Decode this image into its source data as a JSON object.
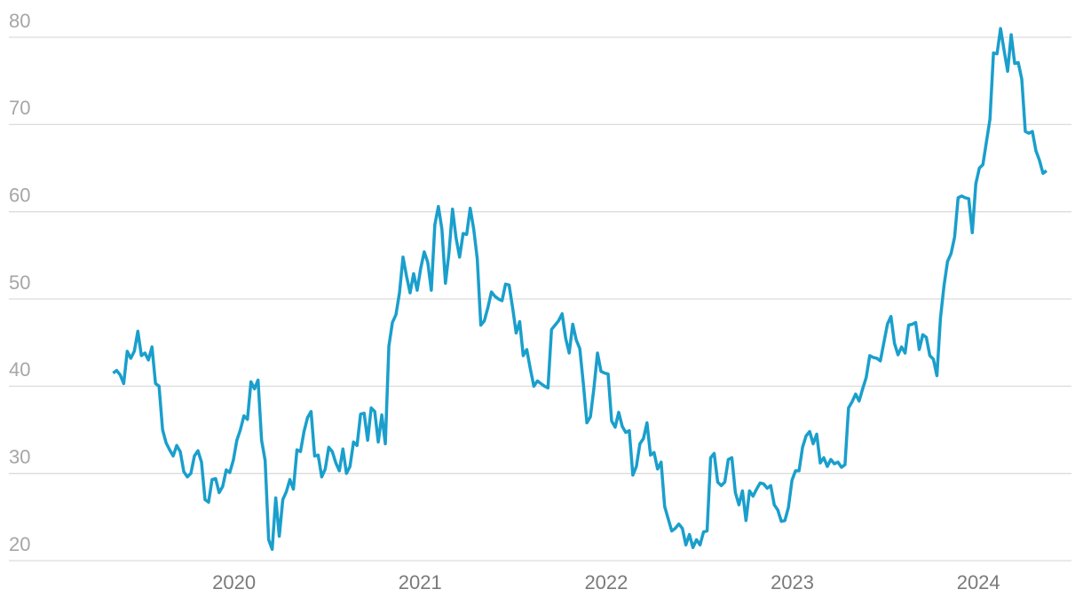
{
  "chart_data": {
    "type": "line",
    "color": "#1a9fcc",
    "grid": true,
    "xlim": [
      2018.79,
      2024.5
    ],
    "ylim": [
      20,
      83
    ],
    "xticks": [
      2020,
      2021,
      2022,
      2023,
      2024
    ],
    "yticks": [
      20,
      30,
      40,
      50,
      60,
      70,
      80
    ],
    "x": [
      2019.35,
      2019.369,
      2019.388,
      2019.407,
      2019.426,
      2019.445,
      2019.464,
      2019.483,
      2019.502,
      2019.521,
      2019.54,
      2019.559,
      2019.578,
      2019.597,
      2019.616,
      2019.635,
      2019.654,
      2019.673,
      2019.692,
      2019.711,
      2019.73,
      2019.749,
      2019.768,
      2019.787,
      2019.806,
      2019.825,
      2019.844,
      2019.863,
      2019.882,
      2019.901,
      2019.92,
      2019.939,
      2019.958,
      2019.977,
      2019.996,
      2020.015,
      2020.034,
      2020.053,
      2020.072,
      2020.091,
      2020.11,
      2020.129,
      2020.148,
      2020.167,
      2020.186,
      2020.205,
      2020.224,
      2020.243,
      2020.262,
      2020.281,
      2020.3,
      2020.319,
      2020.338,
      2020.357,
      2020.376,
      2020.395,
      2020.414,
      2020.433,
      2020.452,
      2020.471,
      2020.49,
      2020.509,
      2020.528,
      2020.547,
      2020.566,
      2020.585,
      2020.604,
      2020.623,
      2020.642,
      2020.661,
      2020.68,
      2020.699,
      2020.718,
      2020.737,
      2020.756,
      2020.775,
      2020.794,
      2020.813,
      2020.832,
      2020.851,
      2020.87,
      2020.889,
      2020.908,
      2020.927,
      2020.946,
      2020.965,
      2020.984,
      2021.003,
      2021.022,
      2021.041,
      2021.06,
      2021.079,
      2021.098,
      2021.117,
      2021.136,
      2021.155,
      2021.174,
      2021.193,
      2021.212,
      2021.231,
      2021.25,
      2021.269,
      2021.288,
      2021.307,
      2021.326,
      2021.345,
      2021.364,
      2021.383,
      2021.402,
      2021.421,
      2021.44,
      2021.459,
      2021.478,
      2021.497,
      2021.516,
      2021.535,
      2021.554,
      2021.573,
      2021.592,
      2021.611,
      2021.63,
      2021.649,
      2021.668,
      2021.687,
      2021.706,
      2021.725,
      2021.744,
      2021.763,
      2021.782,
      2021.801,
      2021.82,
      2021.839,
      2021.858,
      2021.877,
      2021.896,
      2021.915,
      2021.934,
      2021.953,
      2021.972,
      2021.991,
      2022.01,
      2022.029,
      2022.048,
      2022.067,
      2022.086,
      2022.105,
      2022.124,
      2022.143,
      2022.162,
      2022.181,
      2022.2,
      2022.219,
      2022.238,
      2022.257,
      2022.276,
      2022.295,
      2022.314,
      2022.333,
      2022.352,
      2022.371,
      2022.39,
      2022.409,
      2022.428,
      2022.447,
      2022.466,
      2022.485,
      2022.504,
      2022.523,
      2022.542,
      2022.561,
      2022.58,
      2022.599,
      2022.618,
      2022.637,
      2022.656,
      2022.675,
      2022.694,
      2022.713,
      2022.732,
      2022.751,
      2022.77,
      2022.789,
      2022.808,
      2022.827,
      2022.846,
      2022.865,
      2022.884,
      2022.903,
      2022.922,
      2022.941,
      2022.96,
      2022.979,
      2022.998,
      2023.017,
      2023.036,
      2023.055,
      2023.074,
      2023.093,
      2023.112,
      2023.131,
      2023.15,
      2023.169,
      2023.188,
      2023.207,
      2023.226,
      2023.245,
      2023.264,
      2023.283,
      2023.302,
      2023.321,
      2023.34,
      2023.359,
      2023.378,
      2023.397,
      2023.416,
      2023.435,
      2023.454,
      2023.473,
      2023.492,
      2023.511,
      2023.53,
      2023.549,
      2023.568,
      2023.587,
      2023.606,
      2023.625,
      2023.644,
      2023.663,
      2023.682,
      2023.701,
      2023.72,
      2023.739,
      2023.758,
      2023.777,
      2023.796,
      2023.815,
      2023.834,
      2023.853,
      2023.872,
      2023.891,
      2023.91,
      2023.929,
      2023.948,
      2023.967,
      2023.986,
      2024.005,
      2024.024,
      2024.043,
      2024.062,
      2024.081,
      2024.1,
      2024.119,
      2024.138,
      2024.157,
      2024.176,
      2024.195,
      2024.214,
      2024.233,
      2024.252,
      2024.271,
      2024.29,
      2024.309,
      2024.328,
      2024.347,
      2024.366
    ],
    "values": [
      41.5,
      41.8,
      41.3,
      40.3,
      44.0,
      43.2,
      44.0,
      46.3,
      43.5,
      43.8,
      43.0,
      44.5,
      40.3,
      40.0,
      35.0,
      33.5,
      32.7,
      32.0,
      33.2,
      32.5,
      30.2,
      29.6,
      30.0,
      32.0,
      32.6,
      31.3,
      27.0,
      26.7,
      29.3,
      29.4,
      27.8,
      28.5,
      30.4,
      30.1,
      31.5,
      33.8,
      35.0,
      36.6,
      36.2,
      40.5,
      39.7,
      40.7,
      33.8,
      31.5,
      22.4,
      21.3,
      27.2,
      22.8,
      27.0,
      27.9,
      29.3,
      28.2,
      32.7,
      32.5,
      34.8,
      36.4,
      37.1,
      32.0,
      32.1,
      29.6,
      30.5,
      33.0,
      32.5,
      31.2,
      30.3,
      32.8,
      30.0,
      30.8,
      33.6,
      33.2,
      36.8,
      36.9,
      33.8,
      37.5,
      37.1,
      33.6,
      36.7,
      33.4,
      44.6,
      47.3,
      48.2,
      50.7,
      54.8,
      52.6,
      50.7,
      52.9,
      51.0,
      53.5,
      55.4,
      54.2,
      51.0,
      58.5,
      60.6,
      58.0,
      51.8,
      55.3,
      60.3,
      57.0,
      54.8,
      57.5,
      57.4,
      60.4,
      58.0,
      54.6,
      47.0,
      47.5,
      49.0,
      50.8,
      50.3,
      50.0,
      49.8,
      51.7,
      51.6,
      49.0,
      46.1,
      47.4,
      43.5,
      44.2,
      42.0,
      40.0,
      40.6,
      40.3,
      40.0,
      39.8,
      46.5,
      47.0,
      47.5,
      48.3,
      45.5,
      43.8,
      47.1,
      45.3,
      44.3,
      40.3,
      35.8,
      36.5,
      39.8,
      43.8,
      41.7,
      41.5,
      41.4,
      36.0,
      35.3,
      37.0,
      35.4,
      34.7,
      34.9,
      29.8,
      30.8,
      33.4,
      34.0,
      35.8,
      32.1,
      32.4,
      30.5,
      31.3,
      26.2,
      24.8,
      23.4,
      23.7,
      24.2,
      23.7,
      21.8,
      23.0,
      21.5,
      22.4,
      21.8,
      23.3,
      23.4,
      31.8,
      32.3,
      29.0,
      28.6,
      29.0,
      31.6,
      31.8,
      27.8,
      26.4,
      28.0,
      24.6,
      28.0,
      27.4,
      28.2,
      28.9,
      28.8,
      28.3,
      28.6,
      26.4,
      25.8,
      24.5,
      24.6,
      26.1,
      29.2,
      30.3,
      30.3,
      33.0,
      34.3,
      34.8,
      33.4,
      34.5,
      31.2,
      31.8,
      30.8,
      31.6,
      31.1,
      31.3,
      30.7,
      31.0,
      37.5,
      38.2,
      39.1,
      38.3,
      39.7,
      41.0,
      43.5,
      43.3,
      43.2,
      42.9,
      45.0,
      47.1,
      48.0,
      44.9,
      43.6,
      44.5,
      43.8,
      47.0,
      47.1,
      47.3,
      44.2,
      45.9,
      45.6,
      43.5,
      43.1,
      41.2,
      47.8,
      51.5,
      54.3,
      55.2,
      57.1,
      61.6,
      61.8,
      61.6,
      61.5,
      57.6,
      63.2,
      65.0,
      65.4,
      68.0,
      70.6,
      78.2,
      78.1,
      81.0,
      78.5,
      76.1,
      80.3,
      77.0,
      77.1,
      75.2,
      69.2,
      69.0,
      69.2,
      67.0,
      65.9,
      64.4,
      64.7
    ]
  }
}
